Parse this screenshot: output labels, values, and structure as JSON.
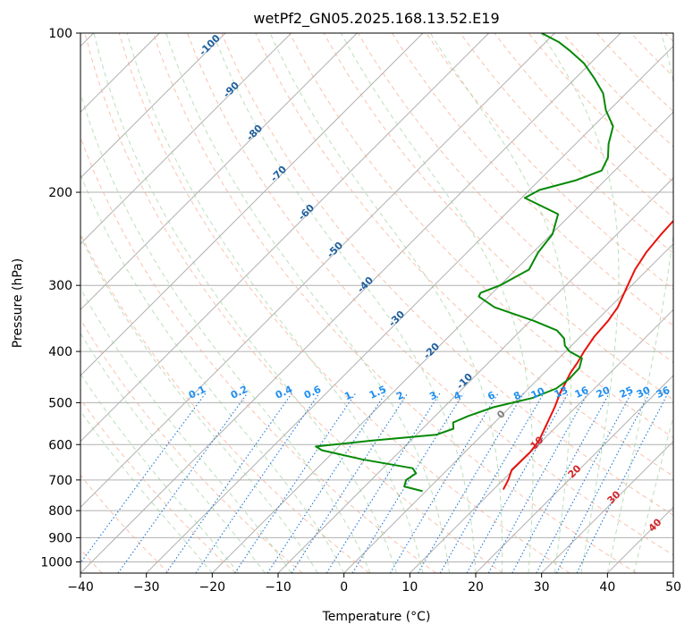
{
  "chart_data": {
    "type": "line",
    "title": "wetPf2_GN05.2025.168.13.52.E19",
    "xlabel": "Temperature (°C)",
    "ylabel": "Pressure (hPa)",
    "xlim": [
      -40,
      50
    ],
    "ylim": [
      1050,
      100
    ],
    "y_scale": "log",
    "grid": true,
    "x_ticks": [
      -40,
      -30,
      -20,
      -10,
      0,
      10,
      20,
      30,
      40,
      50
    ],
    "y_ticks": [
      100,
      200,
      300,
      400,
      500,
      600,
      700,
      800,
      900,
      1000
    ],
    "skew": "skew-T",
    "series": [
      {
        "role": "temperature",
        "color": "#e8120c",
        "points": [
          [
            11.5,
            730
          ],
          [
            10.8,
            700
          ],
          [
            9.8,
            670
          ],
          [
            9.9,
            620
          ],
          [
            9.5,
            590
          ],
          [
            8.2,
            550
          ],
          [
            6.8,
            510
          ],
          [
            5.5,
            480
          ],
          [
            4.8,
            460
          ],
          [
            4.0,
            440
          ],
          [
            3.5,
            420
          ],
          [
            2.8,
            400
          ],
          [
            2.1,
            375
          ],
          [
            1.8,
            350
          ],
          [
            1.2,
            330
          ],
          [
            -0.6,
            300
          ],
          [
            -1.9,
            280
          ],
          [
            -2.8,
            260
          ],
          [
            -3.3,
            240
          ],
          [
            -3.5,
            225
          ],
          [
            -3.6,
            210
          ],
          [
            -3.9,
            200
          ],
          [
            -4.4,
            185
          ],
          [
            -5.0,
            170
          ],
          [
            -5.4,
            155
          ],
          [
            -6.2,
            140
          ],
          [
            -7.5,
            128
          ],
          [
            -8.8,
            118
          ],
          [
            -10.5,
            108
          ],
          [
            -12.0,
            100
          ]
        ]
      },
      {
        "role": "dewpoint",
        "color": "#068906",
        "points": [
          [
            -0.5,
            735
          ],
          [
            -4.0,
            720
          ],
          [
            -4.7,
            700
          ],
          [
            -4.2,
            680
          ],
          [
            -5.5,
            665
          ],
          [
            -14.5,
            640
          ],
          [
            -22.0,
            615
          ],
          [
            -23.5,
            605
          ],
          [
            -16.0,
            590
          ],
          [
            -7.0,
            575
          ],
          [
            -5.3,
            560
          ],
          [
            -6.3,
            545
          ],
          [
            -5.0,
            530
          ],
          [
            -2.5,
            510
          ],
          [
            2.0,
            490
          ],
          [
            4.2,
            470
          ],
          [
            4.7,
            450
          ],
          [
            4.6,
            430
          ],
          [
            3.5,
            412
          ],
          [
            0.6,
            400
          ],
          [
            -1.0,
            390
          ],
          [
            -2.2,
            378
          ],
          [
            -4.5,
            365
          ],
          [
            -9.5,
            350
          ],
          [
            -17.5,
            330
          ],
          [
            -21.5,
            315
          ],
          [
            -21.8,
            310
          ],
          [
            -20.0,
            300
          ],
          [
            -18.0,
            280
          ],
          [
            -19.2,
            260
          ],
          [
            -19.8,
            240
          ],
          [
            -22.0,
            220
          ],
          [
            -29.5,
            205
          ],
          [
            -28.5,
            198
          ],
          [
            -24.5,
            190
          ],
          [
            -22.0,
            182
          ],
          [
            -23.0,
            172
          ],
          [
            -25.0,
            162
          ],
          [
            -27.0,
            150
          ],
          [
            -30.5,
            140
          ],
          [
            -33.5,
            130
          ],
          [
            -37.0,
            122
          ],
          [
            -41.0,
            114
          ],
          [
            -45.0,
            108
          ],
          [
            -48.0,
            104
          ],
          [
            -52.0,
            100
          ]
        ]
      }
    ],
    "dry_adiabat_labels": [
      "-100",
      "-90",
      "-80",
      "-70",
      "-60",
      "-50",
      "-40",
      "-30",
      "-20",
      "-10"
    ],
    "moist_adiabat_labels": [
      "0",
      "10",
      "20",
      "30",
      "40"
    ],
    "mixing_ratio_labels": [
      "0.1",
      "0.2",
      "0.4",
      "0.6",
      "1",
      "1.5",
      "2",
      "3",
      "4",
      "6",
      "8",
      "10",
      "13",
      "16",
      "20",
      "25",
      "30",
      "36"
    ],
    "colors": {
      "isotherm": "#b0b0b0",
      "isobar": "#b0b0b0",
      "dry_adiabat": "#f7a88a",
      "moist_adiabat": "#9ed19e",
      "mixing_ratio": "#1f77d4",
      "dry_label": "#1f5f9e",
      "moist_label": "#d62728",
      "mixing_label": "#1f8ff0"
    }
  }
}
